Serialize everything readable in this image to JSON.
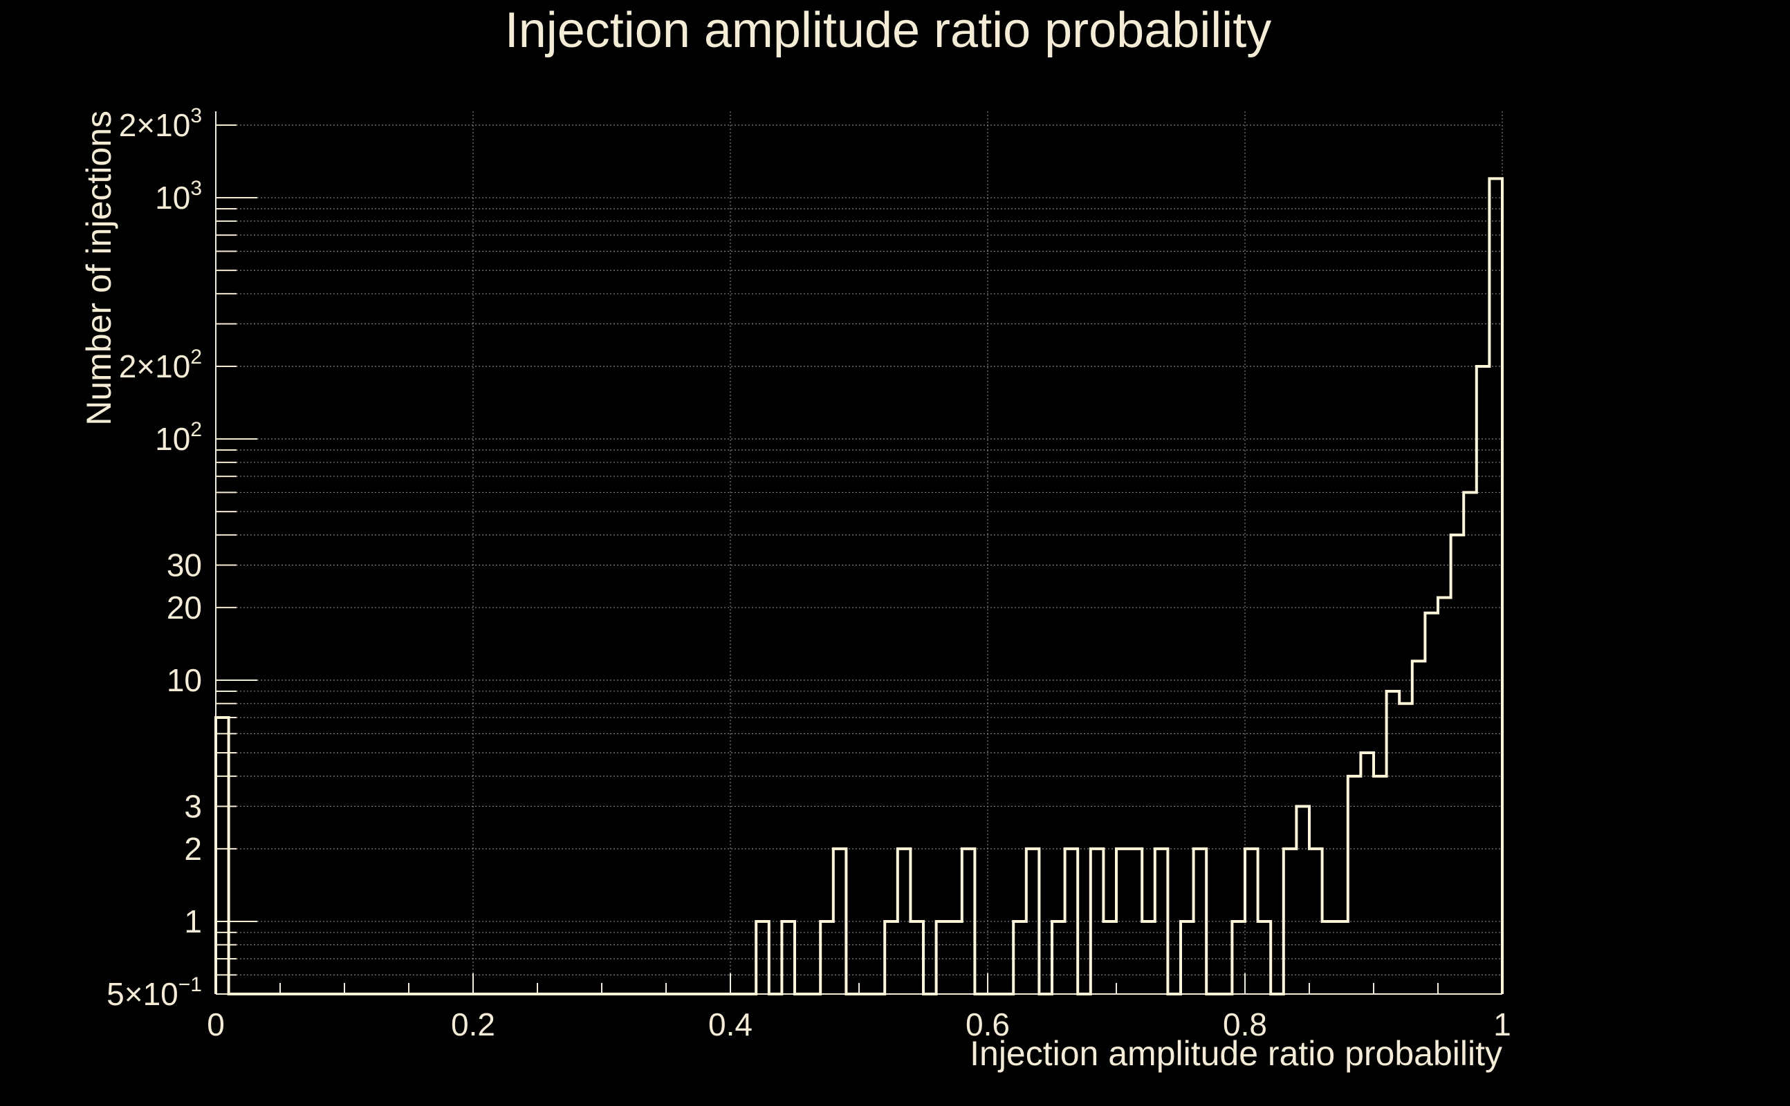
{
  "colors": {
    "background": "#000000",
    "foreground": "#f5ecd6",
    "histogram": "#fff6d8",
    "grid": "#9a9a9a"
  },
  "chart_data": {
    "type": "histogram",
    "title": "Injection amplitude ratio probability",
    "xlabel": "Injection amplitude ratio probability",
    "ylabel": "Number of injections",
    "xlim": [
      0,
      1
    ],
    "ylim": [
      0.5,
      2000
    ],
    "yscale": "log",
    "grid": true,
    "x_ticks": [
      {
        "value": 0,
        "label": "0"
      },
      {
        "value": 0.2,
        "label": "0.2"
      },
      {
        "value": 0.4,
        "label": "0.4"
      },
      {
        "value": 0.6,
        "label": "0.6"
      },
      {
        "value": 0.8,
        "label": "0.8"
      },
      {
        "value": 1,
        "label": "1"
      }
    ],
    "y_ticks": [
      {
        "value": 0.5,
        "mantissa": "5×10",
        "exp": "−1"
      },
      {
        "value": 1,
        "mantissa": "1",
        "exp": ""
      },
      {
        "value": 2,
        "mantissa": "2",
        "exp": ""
      },
      {
        "value": 3,
        "mantissa": "3",
        "exp": ""
      },
      {
        "value": 10,
        "mantissa": "10",
        "exp": ""
      },
      {
        "value": 20,
        "mantissa": "20",
        "exp": ""
      },
      {
        "value": 30,
        "mantissa": "30",
        "exp": ""
      },
      {
        "value": 100,
        "mantissa": "10",
        "exp": "2"
      },
      {
        "value": 200,
        "mantissa": "2×10",
        "exp": "2"
      },
      {
        "value": 1000,
        "mantissa": "10",
        "exp": "3"
      },
      {
        "value": 2000,
        "mantissa": "2×10",
        "exp": "3"
      }
    ],
    "bin_edges": [
      0,
      0.01,
      0.02,
      0.03,
      0.04,
      0.05,
      0.06,
      0.07,
      0.08,
      0.09,
      0.1,
      0.11,
      0.12,
      0.13,
      0.14,
      0.15,
      0.16,
      0.17,
      0.18,
      0.19,
      0.2,
      0.21,
      0.22,
      0.23,
      0.24,
      0.25,
      0.26,
      0.27,
      0.28,
      0.29,
      0.3,
      0.31,
      0.32,
      0.33,
      0.34,
      0.35,
      0.36,
      0.37,
      0.38,
      0.39,
      0.4,
      0.41,
      0.42,
      0.43,
      0.44,
      0.45,
      0.46,
      0.47,
      0.48,
      0.49,
      0.5,
      0.51,
      0.52,
      0.53,
      0.54,
      0.55,
      0.56,
      0.57,
      0.58,
      0.59,
      0.6,
      0.61,
      0.62,
      0.63,
      0.64,
      0.65,
      0.66,
      0.67,
      0.68,
      0.69,
      0.7,
      0.71,
      0.72,
      0.73,
      0.74,
      0.75,
      0.76,
      0.77,
      0.78,
      0.79,
      0.8,
      0.81,
      0.82,
      0.83,
      0.84,
      0.85,
      0.86,
      0.87,
      0.88,
      0.89,
      0.9,
      0.91,
      0.92,
      0.93,
      0.94,
      0.95,
      0.96,
      0.97,
      0.98,
      0.99,
      1.0
    ],
    "counts": [
      7,
      0,
      0,
      0,
      0,
      0,
      0,
      0,
      0,
      0,
      0,
      0,
      0,
      0,
      0,
      0,
      0,
      0,
      0,
      0,
      0,
      0,
      0,
      0,
      0,
      0,
      0,
      0,
      0,
      0,
      0,
      0,
      0,
      0,
      0,
      0,
      0,
      0,
      0,
      0,
      0,
      0,
      1,
      0,
      1,
      0,
      0,
      1,
      2,
      0,
      0,
      0,
      1,
      2,
      1,
      0,
      1,
      1,
      2,
      0,
      0,
      0,
      1,
      2,
      0,
      1,
      2,
      0,
      2,
      1,
      2,
      2,
      1,
      2,
      0,
      1,
      2,
      0,
      0,
      1,
      2,
      1,
      0,
      2,
      3,
      2,
      1,
      1,
      4,
      5,
      4,
      9,
      8,
      12,
      19,
      22,
      40,
      60,
      200,
      1200
    ],
    "floor_value": 0.5
  }
}
